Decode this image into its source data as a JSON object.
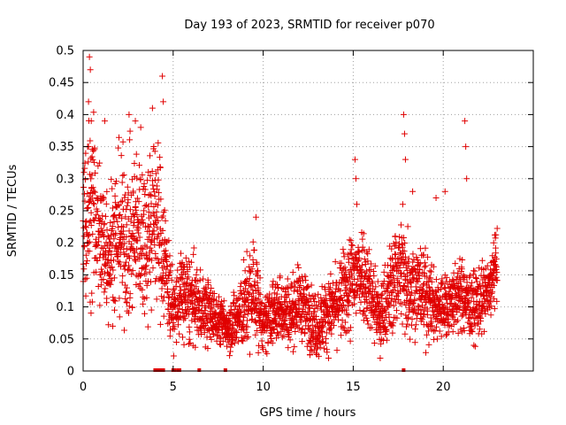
{
  "chart_data": {
    "type": "scatter",
    "title": "Day 193 of 2023, SRMTID for receiver p070",
    "xlabel": "GPS time / hours",
    "ylabel": "SRMTID / TECUs",
    "xlim": [
      0,
      25
    ],
    "ylim": [
      0,
      0.5
    ],
    "x_ticks": [
      0,
      5,
      10,
      15,
      20
    ],
    "x_tick_labels": [
      "0",
      "5",
      "10",
      "15",
      "20"
    ],
    "y_ticks": [
      0,
      0.05,
      0.1,
      0.15,
      0.2,
      0.25,
      0.3,
      0.35,
      0.4,
      0.45,
      0.5
    ],
    "y_tick_labels": [
      "0",
      "0.05",
      "0.1",
      "0.15",
      "0.2",
      "0.25",
      "0.3",
      "0.35",
      "0.4",
      "0.45",
      "0.5"
    ],
    "grid": true,
    "marker": "plus",
    "color": "#e00000",
    "series": [
      {
        "name": "SRMTID",
        "envelope_hours": [
          0.0,
          0.5,
          1.0,
          1.5,
          2.0,
          2.5,
          3.0,
          3.5,
          4.0,
          4.5,
          5.0,
          5.5,
          6.0,
          6.5,
          7.0,
          7.5,
          8.0,
          8.5,
          9.0,
          9.5,
          10.0,
          10.5,
          11.0,
          11.5,
          12.0,
          12.5,
          13.0,
          13.5,
          14.0,
          14.5,
          15.0,
          15.5,
          16.0,
          16.5,
          17.0,
          17.5,
          18.0,
          18.5,
          19.0,
          19.5,
          20.0,
          20.5,
          21.0,
          21.5,
          22.0,
          22.5,
          23.0
        ],
        "envelope_median": [
          0.23,
          0.26,
          0.2,
          0.19,
          0.22,
          0.2,
          0.22,
          0.21,
          0.25,
          0.18,
          0.09,
          0.12,
          0.11,
          0.1,
          0.09,
          0.08,
          0.07,
          0.08,
          0.1,
          0.13,
          0.07,
          0.09,
          0.1,
          0.09,
          0.11,
          0.09,
          0.07,
          0.09,
          0.1,
          0.12,
          0.14,
          0.16,
          0.12,
          0.08,
          0.12,
          0.16,
          0.14,
          0.13,
          0.12,
          0.1,
          0.1,
          0.11,
          0.12,
          0.1,
          0.11,
          0.12,
          0.17
        ],
        "envelope_spread": [
          0.06,
          0.08,
          0.07,
          0.06,
          0.07,
          0.07,
          0.07,
          0.07,
          0.08,
          0.06,
          0.03,
          0.04,
          0.04,
          0.03,
          0.03,
          0.02,
          0.02,
          0.03,
          0.04,
          0.05,
          0.02,
          0.03,
          0.03,
          0.03,
          0.03,
          0.03,
          0.03,
          0.03,
          0.03,
          0.04,
          0.05,
          0.04,
          0.04,
          0.03,
          0.04,
          0.05,
          0.05,
          0.04,
          0.04,
          0.03,
          0.03,
          0.03,
          0.03,
          0.03,
          0.03,
          0.03,
          0.03
        ],
        "sample_interval_hours": 0.008,
        "spikes": [
          {
            "x": 0.35,
            "y": 0.49
          },
          {
            "x": 0.4,
            "y": 0.47
          },
          {
            "x": 0.3,
            "y": 0.42
          },
          {
            "x": 0.45,
            "y": 0.39
          },
          {
            "x": 0.25,
            "y": 0.35
          },
          {
            "x": 2.55,
            "y": 0.4
          },
          {
            "x": 2.9,
            "y": 0.39
          },
          {
            "x": 3.2,
            "y": 0.38
          },
          {
            "x": 3.85,
            "y": 0.41
          },
          {
            "x": 4.4,
            "y": 0.46
          },
          {
            "x": 4.45,
            "y": 0.42
          },
          {
            "x": 1.2,
            "y": 0.39
          },
          {
            "x": 9.6,
            "y": 0.24
          },
          {
            "x": 15.1,
            "y": 0.33
          },
          {
            "x": 15.15,
            "y": 0.3
          },
          {
            "x": 15.2,
            "y": 0.26
          },
          {
            "x": 17.8,
            "y": 0.4
          },
          {
            "x": 17.85,
            "y": 0.37
          },
          {
            "x": 17.9,
            "y": 0.33
          },
          {
            "x": 17.75,
            "y": 0.26
          },
          {
            "x": 18.3,
            "y": 0.28
          },
          {
            "x": 19.6,
            "y": 0.27
          },
          {
            "x": 20.1,
            "y": 0.28
          },
          {
            "x": 21.2,
            "y": 0.39
          },
          {
            "x": 21.25,
            "y": 0.35
          },
          {
            "x": 21.3,
            "y": 0.3
          },
          {
            "x": 22.8,
            "y": 0.2
          },
          {
            "x": 12.6,
            "y": 0.025
          },
          {
            "x": 10.15,
            "y": 0.03
          },
          {
            "x": 16.5,
            "y": 0.02
          },
          {
            "x": 21.7,
            "y": 0.04
          }
        ],
        "zero_points": [
          4.0,
          4.05,
          4.1,
          4.15,
          4.2,
          4.25,
          4.3,
          4.35,
          4.4,
          4.45,
          5.0,
          5.1,
          5.3,
          5.35,
          6.45,
          7.9,
          17.8
        ]
      }
    ]
  }
}
